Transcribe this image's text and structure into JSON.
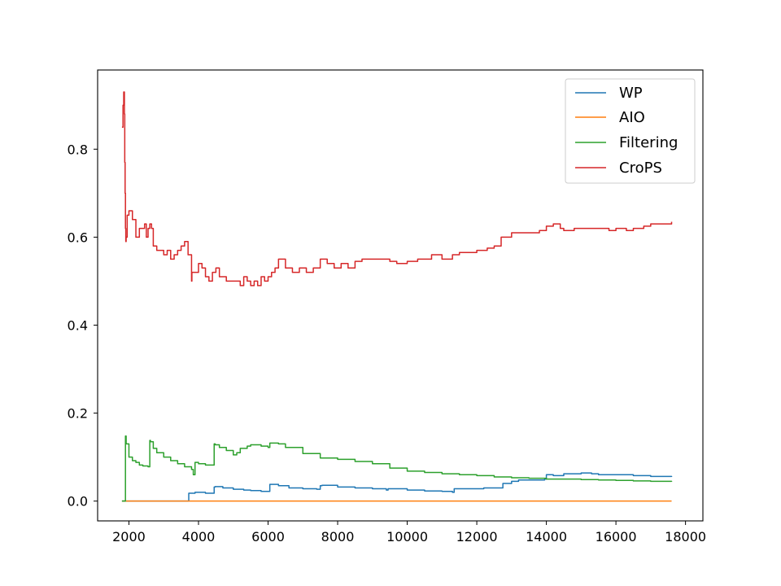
{
  "chart_data": {
    "type": "line",
    "title": "",
    "xlabel": "",
    "ylabel": "",
    "xlim": [
      1100,
      18500
    ],
    "ylim": [
      -0.045,
      0.98
    ],
    "xticks": [
      2000,
      4000,
      6000,
      8000,
      10000,
      12000,
      14000,
      16000,
      18000
    ],
    "yticks": [
      0.0,
      0.2,
      0.4,
      0.6,
      0.8
    ],
    "xtick_labels": [
      "2000",
      "4000",
      "6000",
      "8000",
      "10000",
      "12000",
      "14000",
      "16000",
      "18000"
    ],
    "ytick_labels": [
      "0.0",
      "0.2",
      "0.4",
      "0.6",
      "0.8"
    ],
    "grid": false,
    "legend_position": "top-right",
    "series": [
      {
        "name": "WP",
        "color": "#1f77b4",
        "x": [
          1800,
          1850,
          1900,
          2100,
          2500,
          3000,
          3500,
          3700,
          3720,
          3900,
          4000,
          4200,
          4450,
          4480,
          4700,
          5000,
          5300,
          5500,
          5800,
          6000,
          6050,
          6300,
          6600,
          7000,
          7400,
          7500,
          7550,
          8000,
          8500,
          9000,
          9400,
          9450,
          10000,
          10500,
          11000,
          11300,
          11350,
          11800,
          12200,
          12500,
          12700,
          12750,
          13000,
          13200,
          13600,
          13950,
          14000,
          14200,
          14500,
          15000,
          15300,
          15500,
          16000,
          16500,
          17000,
          17600
        ],
        "values": [
          0.0,
          0.0,
          0.0,
          0.0,
          0.0,
          0.0,
          0.0,
          0.0,
          0.018,
          0.02,
          0.02,
          0.018,
          0.032,
          0.033,
          0.03,
          0.027,
          0.025,
          0.024,
          0.022,
          0.022,
          0.038,
          0.035,
          0.03,
          0.028,
          0.027,
          0.035,
          0.036,
          0.032,
          0.03,
          0.028,
          0.025,
          0.028,
          0.025,
          0.023,
          0.022,
          0.02,
          0.028,
          0.028,
          0.03,
          0.03,
          0.03,
          0.04,
          0.045,
          0.048,
          0.048,
          0.05,
          0.06,
          0.058,
          0.062,
          0.064,
          0.062,
          0.06,
          0.06,
          0.058,
          0.056,
          0.055
        ]
      },
      {
        "name": "AIO",
        "color": "#ff7f0e",
        "x": [
          1800,
          17600
        ],
        "values": [
          0.0,
          0.0
        ]
      },
      {
        "name": "Filtering",
        "color": "#2ca02c",
        "x": [
          1800,
          1850,
          1900,
          1920,
          2000,
          2100,
          2200,
          2300,
          2400,
          2550,
          2600,
          2620,
          2700,
          2800,
          3000,
          3200,
          3400,
          3600,
          3800,
          3850,
          3900,
          4000,
          4200,
          4450,
          4480,
          4600,
          4800,
          5000,
          5100,
          5200,
          5400,
          5500,
          5800,
          6000,
          6050,
          6300,
          6500,
          7000,
          7500,
          8000,
          8500,
          9000,
          9500,
          10000,
          10500,
          11000,
          11500,
          12000,
          12500,
          13000,
          13500,
          14000,
          14500,
          15000,
          15500,
          16000,
          16500,
          17000,
          17600
        ],
        "values": [
          0.0,
          0.0,
          0.148,
          0.13,
          0.1,
          0.092,
          0.088,
          0.082,
          0.08,
          0.078,
          0.138,
          0.135,
          0.12,
          0.11,
          0.1,
          0.092,
          0.085,
          0.078,
          0.072,
          0.06,
          0.088,
          0.085,
          0.082,
          0.13,
          0.128,
          0.122,
          0.115,
          0.105,
          0.11,
          0.12,
          0.125,
          0.128,
          0.125,
          0.122,
          0.132,
          0.13,
          0.122,
          0.108,
          0.098,
          0.095,
          0.09,
          0.085,
          0.075,
          0.068,
          0.065,
          0.062,
          0.06,
          0.058,
          0.055,
          0.053,
          0.052,
          0.05,
          0.05,
          0.049,
          0.048,
          0.047,
          0.046,
          0.045,
          0.044
        ]
      },
      {
        "name": "CroPS",
        "color": "#d62728",
        "x": [
          1800,
          1830,
          1850,
          1870,
          1880,
          1890,
          1900,
          1910,
          1920,
          1950,
          2000,
          2100,
          2200,
          2300,
          2400,
          2450,
          2500,
          2550,
          2600,
          2650,
          2700,
          2800,
          2900,
          3000,
          3100,
          3200,
          3300,
          3400,
          3500,
          3600,
          3700,
          3800,
          3810,
          3900,
          4000,
          4100,
          4200,
          4300,
          4400,
          4500,
          4600,
          4800,
          5000,
          5200,
          5300,
          5400,
          5500,
          5600,
          5700,
          5800,
          5900,
          6000,
          6100,
          6200,
          6300,
          6500,
          6700,
          6900,
          7100,
          7300,
          7500,
          7700,
          7900,
          8100,
          8300,
          8500,
          8700,
          9000,
          9300,
          9500,
          9700,
          10000,
          10300,
          10500,
          10700,
          11000,
          11300,
          11500,
          11700,
          12000,
          12300,
          12500,
          12700,
          13000,
          13200,
          13500,
          13800,
          14000,
          14200,
          14400,
          14500,
          14800,
          15000,
          15300,
          15500,
          15800,
          16000,
          16300,
          16500,
          16800,
          17000,
          17300,
          17600
        ],
        "values": [
          0.85,
          0.9,
          0.93,
          0.88,
          0.77,
          0.7,
          0.62,
          0.59,
          0.6,
          0.65,
          0.66,
          0.64,
          0.6,
          0.62,
          0.62,
          0.63,
          0.6,
          0.62,
          0.63,
          0.62,
          0.58,
          0.57,
          0.57,
          0.56,
          0.57,
          0.55,
          0.56,
          0.57,
          0.58,
          0.59,
          0.56,
          0.5,
          0.52,
          0.52,
          0.54,
          0.53,
          0.51,
          0.5,
          0.52,
          0.53,
          0.51,
          0.5,
          0.5,
          0.49,
          0.51,
          0.5,
          0.49,
          0.5,
          0.49,
          0.51,
          0.5,
          0.51,
          0.52,
          0.53,
          0.55,
          0.53,
          0.52,
          0.53,
          0.52,
          0.53,
          0.55,
          0.54,
          0.53,
          0.54,
          0.53,
          0.545,
          0.55,
          0.55,
          0.55,
          0.545,
          0.54,
          0.545,
          0.55,
          0.55,
          0.56,
          0.55,
          0.56,
          0.565,
          0.565,
          0.57,
          0.575,
          0.58,
          0.6,
          0.61,
          0.61,
          0.61,
          0.615,
          0.625,
          0.63,
          0.62,
          0.615,
          0.62,
          0.62,
          0.62,
          0.62,
          0.615,
          0.62,
          0.615,
          0.62,
          0.625,
          0.63,
          0.63,
          0.635
        ]
      }
    ]
  }
}
